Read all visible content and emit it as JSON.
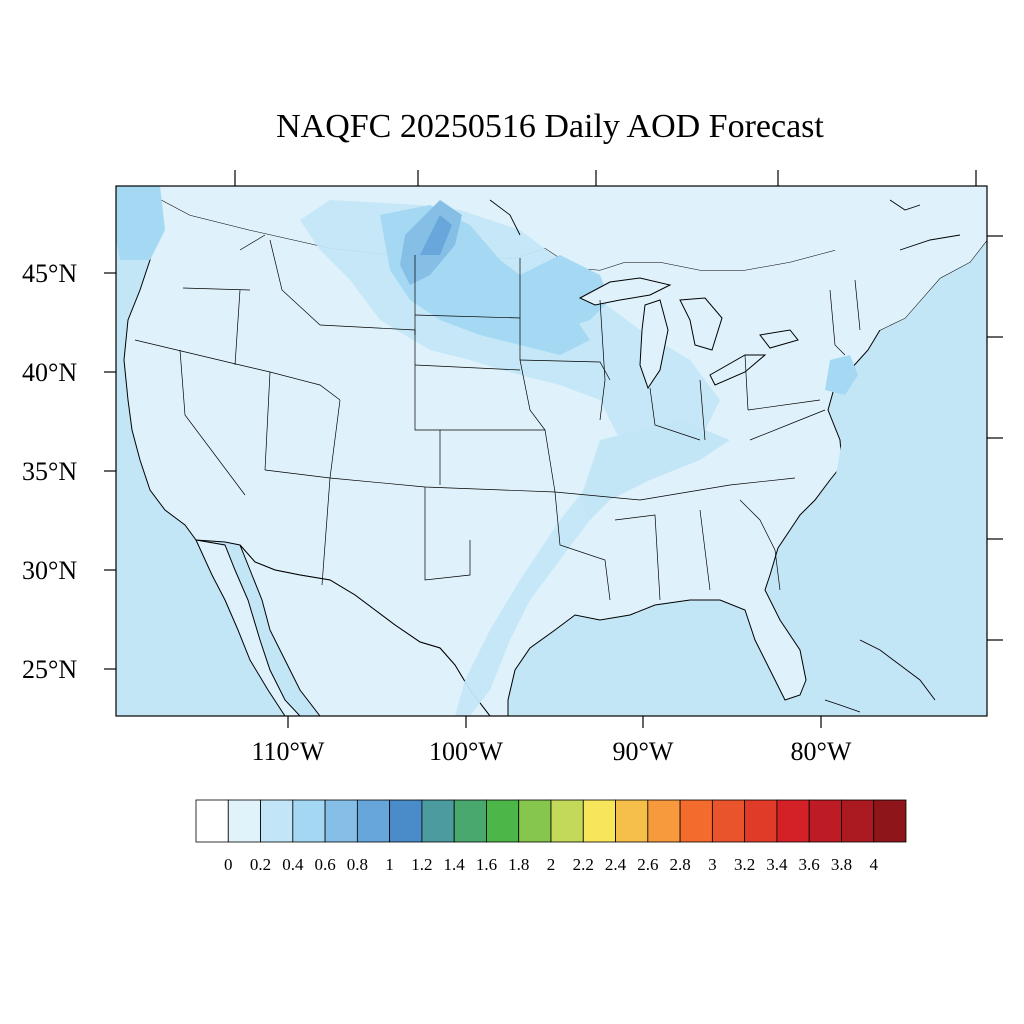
{
  "title": "NAQFC 20250516 Daily AOD Forecast",
  "map": {
    "lat_labels": [
      "45°N",
      "40°N",
      "35°N",
      "30°N",
      "25°N"
    ],
    "lon_labels": [
      "110°W",
      "100°W",
      "90°W",
      "80°W"
    ],
    "field": "Daily AOD",
    "dominant_levels": [
      "0-0.2 over most land",
      "0.2-0.4 over oceans and plume bands",
      "0.4-0.8 over northern plains / Great Lakes / Rockies"
    ]
  },
  "colorbar": {
    "labels": [
      "0",
      "0.2",
      "0.4",
      "0.6",
      "0.8",
      "1",
      "1.2",
      "1.4",
      "1.6",
      "1.8",
      "2",
      "2.2",
      "2.4",
      "2.6",
      "2.8",
      "3",
      "3.2",
      "3.4",
      "3.6",
      "3.8",
      "4"
    ],
    "colors": [
      "#ffffff",
      "#e0f3fb",
      "#c2e6f7",
      "#a3d7f2",
      "#85bee6",
      "#67a6db",
      "#4a8cc9",
      "#4b9b9f",
      "#48a86d",
      "#4cb748",
      "#86c64d",
      "#c2d95a",
      "#f7e55b",
      "#f6bf4a",
      "#f7993d",
      "#f46b2e",
      "#e9542c",
      "#e03a28",
      "#d42128",
      "#bd1c24",
      "#aa1a20",
      "#8e161a"
    ]
  },
  "colors": {
    "land": "#dff2fb",
    "ocean": "#c3e6f7",
    "plume_medium": "#a4d8f3",
    "plume_dark": "#86bfe6",
    "plume_darkest": "#68a6db",
    "outline": "#000000"
  }
}
